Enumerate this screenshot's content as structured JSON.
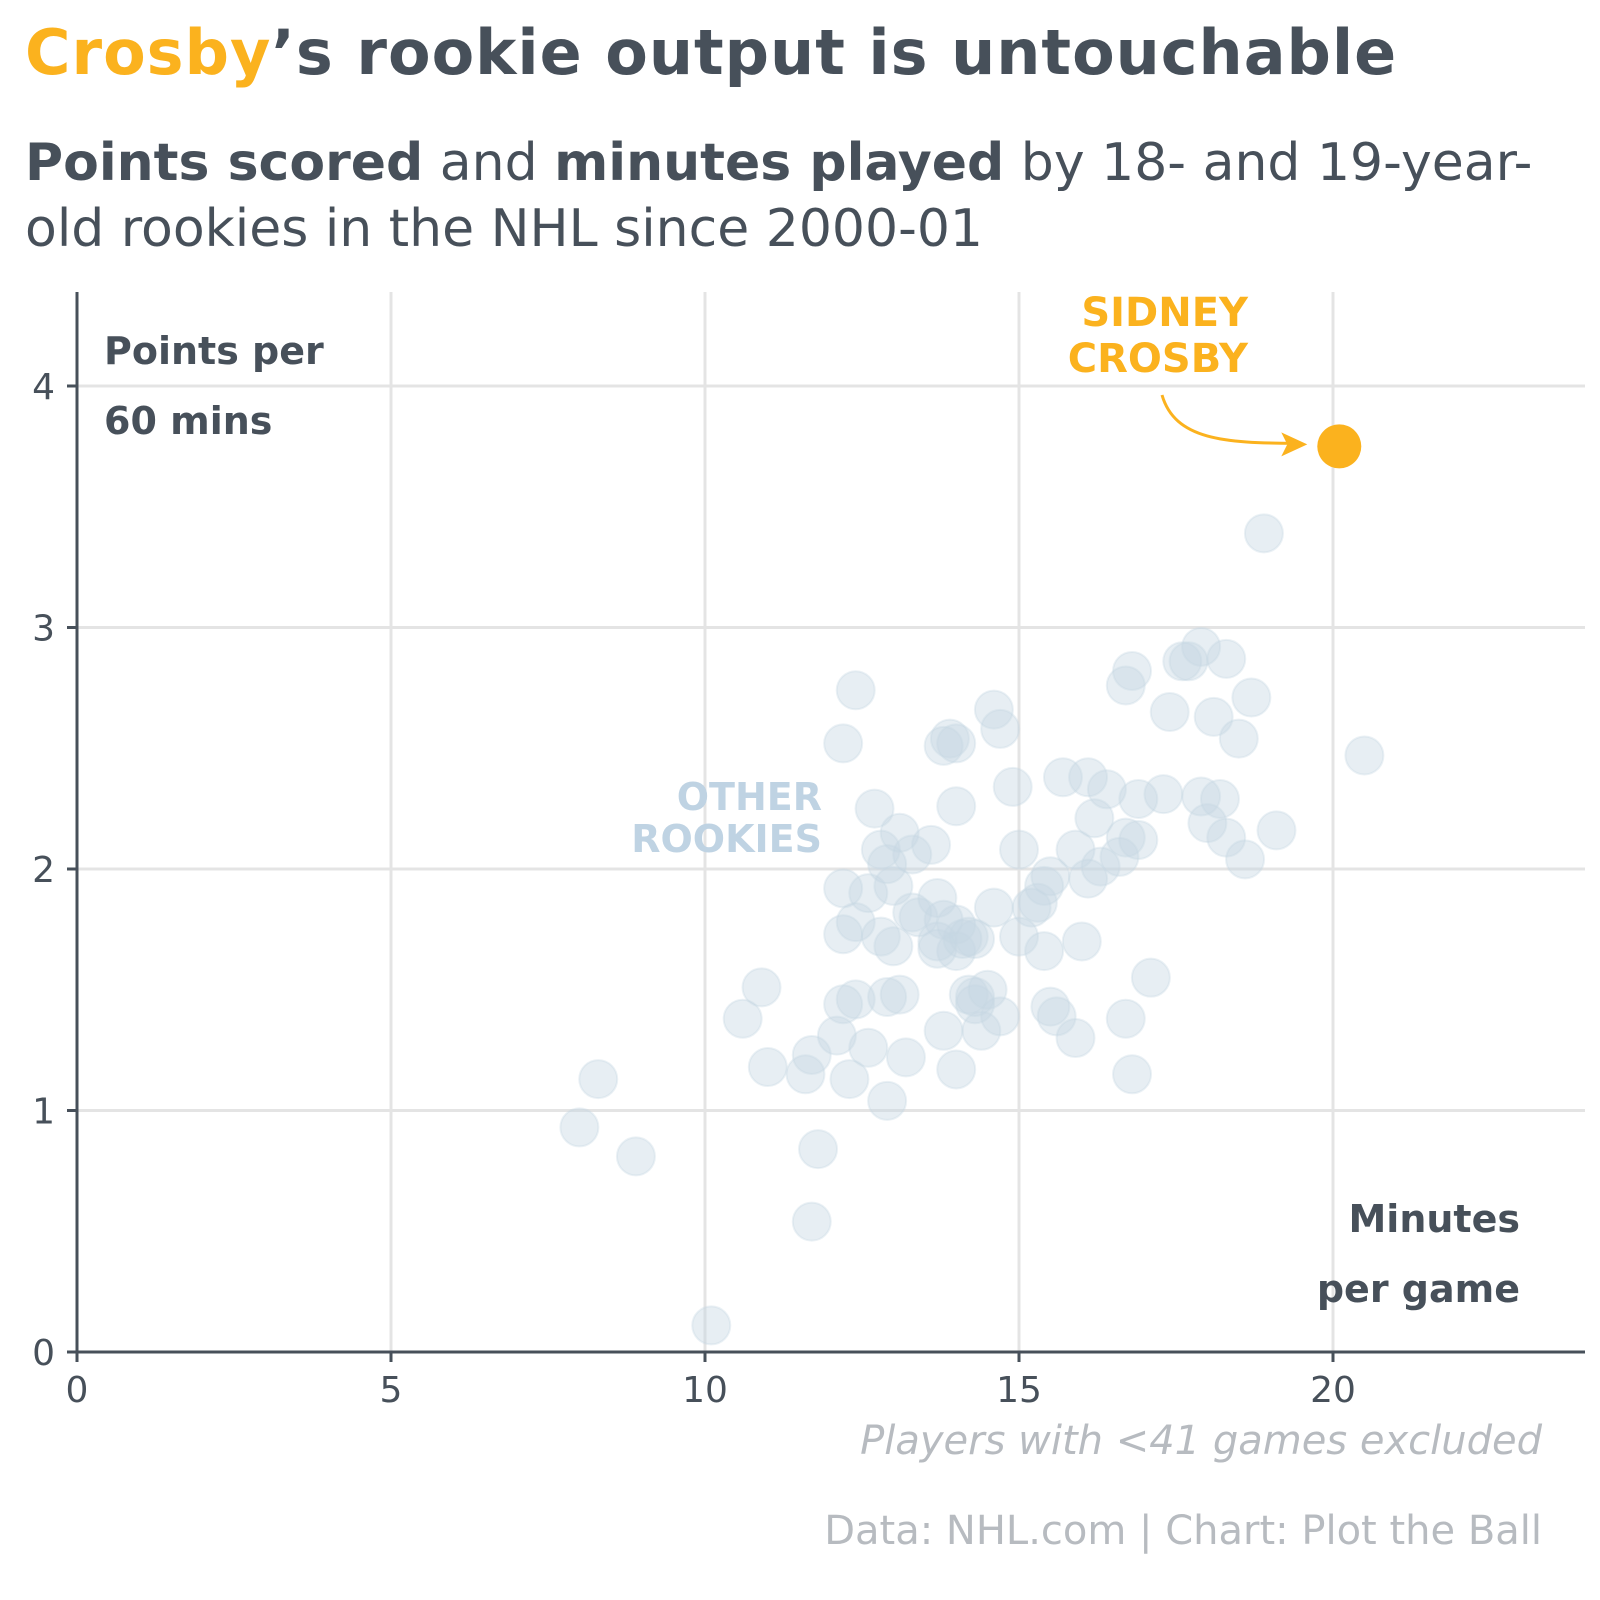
{
  "title": {
    "highlight": "Crosby",
    "rest": "’s rookie output is untouchable"
  },
  "subtitle": {
    "bold1": "Points scored",
    "text1": " and ",
    "bold2": "minutes played",
    "text2": " by 18- and 19-year-old rookies in the NHL since 2000-01"
  },
  "footnote": "Players with <41 games excluded",
  "credit": "Data: NHL.com | Chart: Plot the Ball",
  "colors": {
    "text": "#47505a",
    "accent": "#fbb21e",
    "others": "#c6d6e3",
    "grid": "#e4e4e4",
    "muted": "#b7bbc0"
  },
  "chart_data": {
    "type": "scatter",
    "xlabel": [
      "Minutes",
      "per game"
    ],
    "ylabel": [
      "Points per",
      "60 mins"
    ],
    "xlim": [
      0,
      24
    ],
    "ylim": [
      0,
      4.4
    ],
    "xticks": [
      0,
      5,
      10,
      15,
      20
    ],
    "yticks": [
      0,
      1,
      2,
      3,
      4
    ],
    "grid": true,
    "annotations": {
      "highlight_label": [
        "SIDNEY",
        "CROSBY"
      ],
      "others_label": [
        "OTHER",
        "ROOKIES"
      ]
    },
    "highlight": {
      "name": "Sidney Crosby",
      "x": 20.1,
      "y": 3.75
    },
    "others": [
      [
        18.9,
        3.39
      ],
      [
        20.5,
        2.47
      ],
      [
        17.9,
        2.92
      ],
      [
        18.3,
        2.87
      ],
      [
        17.6,
        2.86
      ],
      [
        17.7,
        2.86
      ],
      [
        16.8,
        2.82
      ],
      [
        16.7,
        2.76
      ],
      [
        18.7,
        2.71
      ],
      [
        17.4,
        2.65
      ],
      [
        18.1,
        2.63
      ],
      [
        18.5,
        2.54
      ],
      [
        12.4,
        2.74
      ],
      [
        14.6,
        2.66
      ],
      [
        14.7,
        2.58
      ],
      [
        13.9,
        2.54
      ],
      [
        14.0,
        2.52
      ],
      [
        13.8,
        2.51
      ],
      [
        12.2,
        2.52
      ],
      [
        15.7,
        2.38
      ],
      [
        16.1,
        2.38
      ],
      [
        16.4,
        2.33
      ],
      [
        14.9,
        2.34
      ],
      [
        17.3,
        2.31
      ],
      [
        17.9,
        2.3
      ],
      [
        16.9,
        2.29
      ],
      [
        18.2,
        2.29
      ],
      [
        14.0,
        2.26
      ],
      [
        12.7,
        2.25
      ],
      [
        16.2,
        2.21
      ],
      [
        18.0,
        2.19
      ],
      [
        19.1,
        2.16
      ],
      [
        13.1,
        2.15
      ],
      [
        18.3,
        2.13
      ],
      [
        16.7,
        2.13
      ],
      [
        16.9,
        2.12
      ],
      [
        13.6,
        2.1
      ],
      [
        15.0,
        2.08
      ],
      [
        15.9,
        2.08
      ],
      [
        12.8,
        2.08
      ],
      [
        13.3,
        2.06
      ],
      [
        16.6,
        2.05
      ],
      [
        18.6,
        2.04
      ],
      [
        12.9,
        2.02
      ],
      [
        16.3,
        2.01
      ],
      [
        16.1,
        1.96
      ],
      [
        15.5,
        1.97
      ],
      [
        15.4,
        1.93
      ],
      [
        13.0,
        1.93
      ],
      [
        12.2,
        1.92
      ],
      [
        12.6,
        1.9
      ],
      [
        13.7,
        1.88
      ],
      [
        15.3,
        1.86
      ],
      [
        15.2,
        1.84
      ],
      [
        14.6,
        1.84
      ],
      [
        13.3,
        1.82
      ],
      [
        13.4,
        1.8
      ],
      [
        13.8,
        1.79
      ],
      [
        12.4,
        1.78
      ],
      [
        14.0,
        1.77
      ],
      [
        14.2,
        1.72
      ],
      [
        14.3,
        1.71
      ],
      [
        13.7,
        1.7
      ],
      [
        14.1,
        1.71
      ],
      [
        12.2,
        1.73
      ],
      [
        12.8,
        1.72
      ],
      [
        15.0,
        1.72
      ],
      [
        16.0,
        1.7
      ],
      [
        13.0,
        1.68
      ],
      [
        14.0,
        1.66
      ],
      [
        13.7,
        1.67
      ],
      [
        15.4,
        1.66
      ],
      [
        17.1,
        1.55
      ],
      [
        14.5,
        1.5
      ],
      [
        14.2,
        1.48
      ],
      [
        14.3,
        1.47
      ],
      [
        10.9,
        1.51
      ],
      [
        13.1,
        1.48
      ],
      [
        12.9,
        1.47
      ],
      [
        12.4,
        1.46
      ],
      [
        12.2,
        1.44
      ],
      [
        15.5,
        1.43
      ],
      [
        14.3,
        1.44
      ],
      [
        15.6,
        1.39
      ],
      [
        14.7,
        1.39
      ],
      [
        16.7,
        1.38
      ],
      [
        10.6,
        1.38
      ],
      [
        14.4,
        1.33
      ],
      [
        13.8,
        1.33
      ],
      [
        15.9,
        1.3
      ],
      [
        12.1,
        1.31
      ],
      [
        12.6,
        1.26
      ],
      [
        11.7,
        1.23
      ],
      [
        13.2,
        1.22
      ],
      [
        11.0,
        1.18
      ],
      [
        14.0,
        1.17
      ],
      [
        11.6,
        1.15
      ],
      [
        16.8,
        1.15
      ],
      [
        12.3,
        1.13
      ],
      [
        8.3,
        1.13
      ],
      [
        12.9,
        1.04
      ],
      [
        8.0,
        0.93
      ],
      [
        8.9,
        0.81
      ],
      [
        11.8,
        0.84
      ],
      [
        11.7,
        0.54
      ],
      [
        10.1,
        0.11
      ]
    ]
  }
}
